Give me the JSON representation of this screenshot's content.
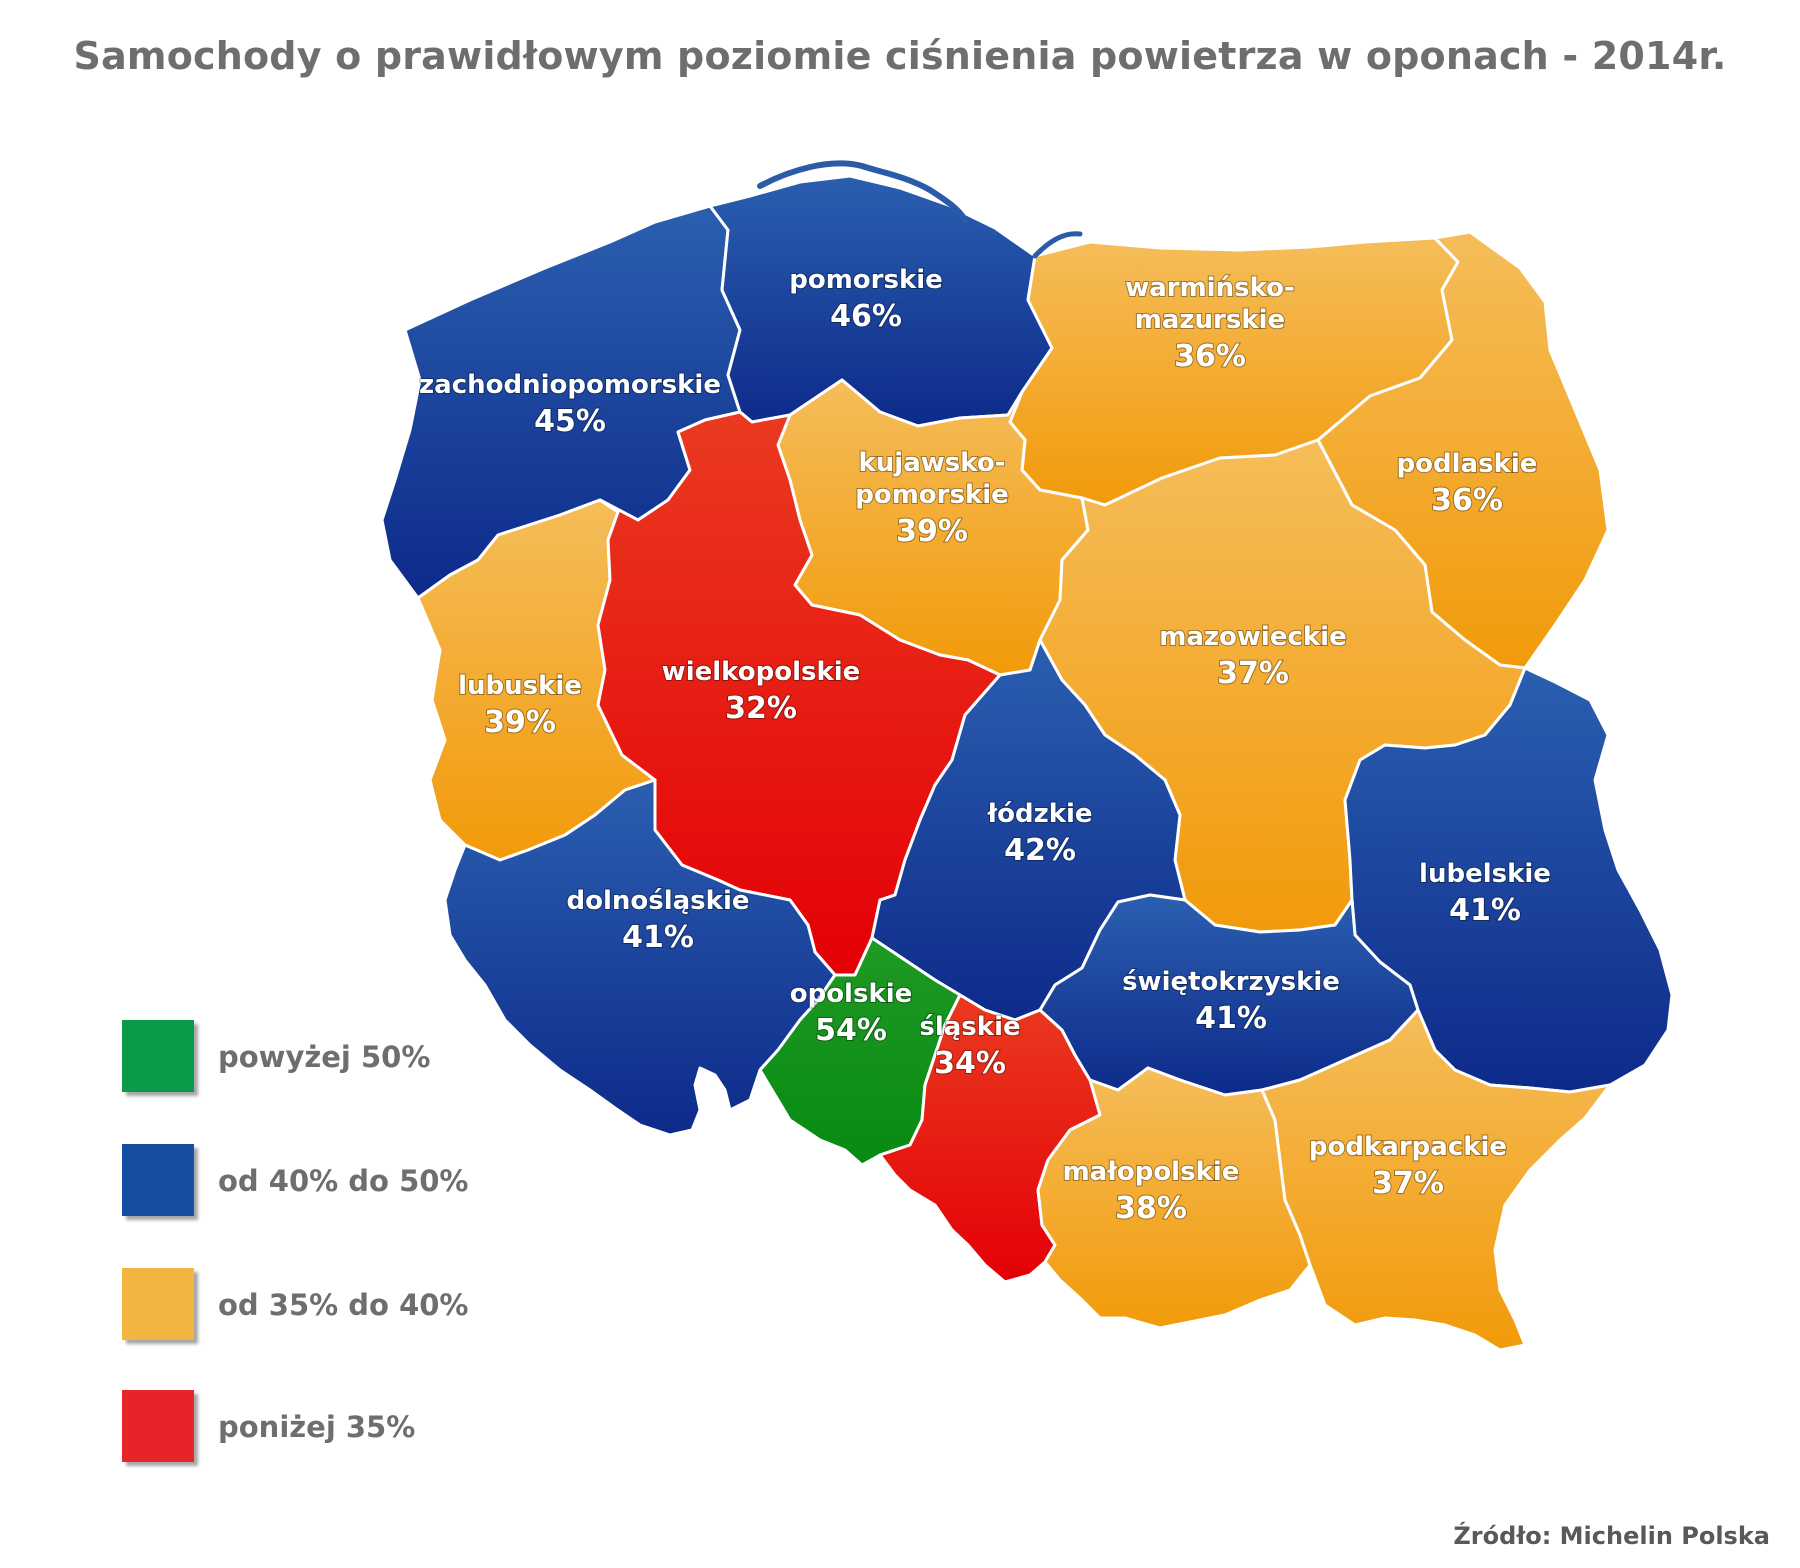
{
  "title": "Samochody o prawidłowym poziomie ciśnienia powietrza w oponach - 2014r.",
  "colors": {
    "powyzej_50": "#0c8f1b",
    "od_40_do_50": "#1a3f9a",
    "od_35_do_40": "#f2a531",
    "ponizej_35": "#e8120c",
    "border": "#ffffff",
    "sea": "#2a5aa8"
  },
  "regions": [
    {
      "id": "zachodniopomorskie",
      "name": "zachodniopomorskie",
      "value": "45%",
      "class": "od_40_do_50"
    },
    {
      "id": "pomorskie",
      "name": "pomorskie",
      "value": "46%",
      "class": "od_40_do_50"
    },
    {
      "id": "warminsko-mazurskie",
      "name_lines": [
        "warmińsko-",
        "mazurskie"
      ],
      "value": "36%",
      "class": "od_35_do_40"
    },
    {
      "id": "podlaskie",
      "name": "podlaskie",
      "value": "36%",
      "class": "od_35_do_40"
    },
    {
      "id": "kujawsko-pomorskie",
      "name_lines": [
        "kujawsko-",
        "pomorskie"
      ],
      "value": "39%",
      "class": "od_35_do_40"
    },
    {
      "id": "lubuskie",
      "name": "lubuskie",
      "value": "39%",
      "class": "od_35_do_40"
    },
    {
      "id": "wielkopolskie",
      "name": "wielkopolskie",
      "value": "32%",
      "class": "ponizej_35"
    },
    {
      "id": "mazowieckie",
      "name": "mazowieckie",
      "value": "37%",
      "class": "od_35_do_40"
    },
    {
      "id": "lodzkie",
      "name": "łódzkie",
      "value": "42%",
      "class": "od_40_do_50"
    },
    {
      "id": "lubelskie",
      "name": "lubelskie",
      "value": "41%",
      "class": "od_40_do_50"
    },
    {
      "id": "dolnoslaskie",
      "name": "dolnośląskie",
      "value": "41%",
      "class": "od_40_do_50"
    },
    {
      "id": "opolskie",
      "name": "opolskie",
      "value": "54%",
      "class": "powyzej_50"
    },
    {
      "id": "slaskie",
      "name": "śląskie",
      "value": "34%",
      "class": "ponizej_35"
    },
    {
      "id": "swietokrzyskie",
      "name": "świętokrzyskie",
      "value": "41%",
      "class": "od_40_do_50"
    },
    {
      "id": "malopolskie",
      "name": "małopolskie",
      "value": "38%",
      "class": "od_35_do_40"
    },
    {
      "id": "podkarpackie",
      "name": "podkarpackie",
      "value": "37%",
      "class": "od_35_do_40"
    }
  ],
  "legend": [
    {
      "key": "powyzej_50",
      "label": "powyżej 50%",
      "color": "#0b9a4a"
    },
    {
      "key": "od_40_do_50",
      "label": "od 40% do 50%",
      "color": "#164ea2"
    },
    {
      "key": "od_35_do_40",
      "label": "od 35% do 40%",
      "color": "#f4b441"
    },
    {
      "key": "ponizej_35",
      "label": "poniżej 35%",
      "color": "#e7242a"
    }
  ],
  "source": "Źródło: Michelin Polska"
}
